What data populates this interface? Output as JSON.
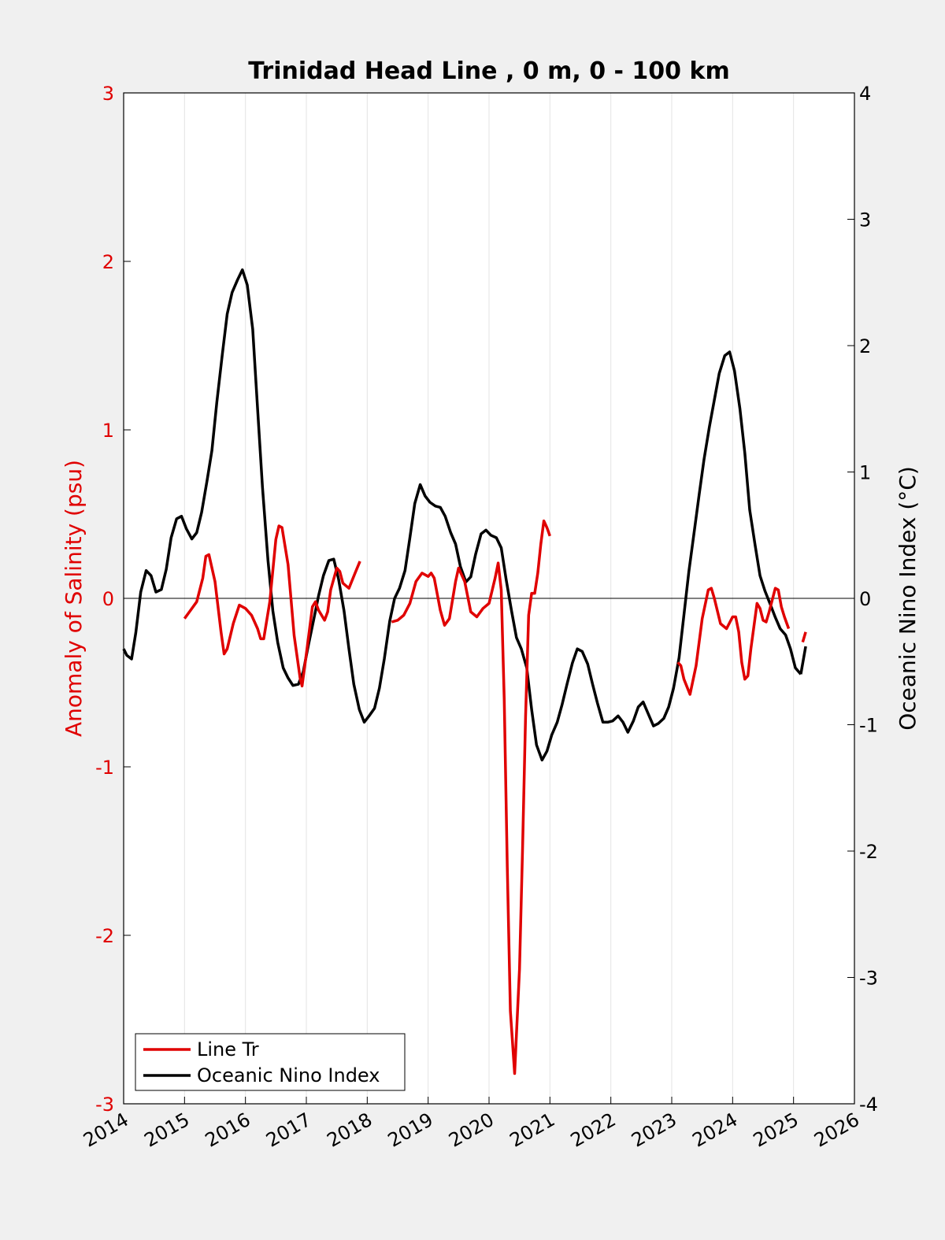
{
  "chart_data": {
    "type": "line",
    "title": "Trinidad Head Line , 0 m, 0 - 100 km",
    "ylabel_left": "Anomaly of Salinity (psu)",
    "ylabel_right": "Oceanic Nino Index (°C)",
    "xlim": [
      2014,
      2026
    ],
    "ylim_left": [
      -3,
      3
    ],
    "ylim_right": [
      -4,
      4
    ],
    "x_ticks": [
      "2014",
      "2015",
      "2016",
      "2017",
      "2018",
      "2019",
      "2020",
      "2021",
      "2022",
      "2023",
      "2024",
      "2025",
      "2026"
    ],
    "y_ticks_left": [
      "3",
      "2",
      "1",
      "0",
      "-1",
      "-2",
      "-3"
    ],
    "y_ticks_right": [
      "4",
      "3",
      "2",
      "1",
      "0",
      "-1",
      "-2",
      "-3",
      "-4"
    ],
    "grid": "vertical",
    "legend_placement": "bottom-left",
    "colors": {
      "salinity": "#e00000",
      "oni": "#000000"
    },
    "series": [
      {
        "name": "Line Tr",
        "axis": "left",
        "color": "#e00000",
        "segments": [
          [
            [
              2015.0,
              -0.12
            ],
            [
              2015.1,
              -0.07
            ],
            [
              2015.2,
              -0.02
            ],
            [
              2015.3,
              0.12
            ],
            [
              2015.35,
              0.25
            ],
            [
              2015.4,
              0.26
            ],
            [
              2015.5,
              0.1
            ],
            [
              2015.6,
              -0.2
            ],
            [
              2015.65,
              -0.33
            ],
            [
              2015.7,
              -0.3
            ],
            [
              2015.8,
              -0.15
            ],
            [
              2015.9,
              -0.04
            ],
            [
              2016.0,
              -0.06
            ],
            [
              2016.1,
              -0.1
            ],
            [
              2016.2,
              -0.18
            ],
            [
              2016.25,
              -0.24
            ],
            [
              2016.3,
              -0.24
            ],
            [
              2016.4,
              -0.02
            ],
            [
              2016.5,
              0.35
            ],
            [
              2016.55,
              0.43
            ],
            [
              2016.6,
              0.42
            ],
            [
              2016.7,
              0.2
            ],
            [
              2016.8,
              -0.22
            ],
            [
              2016.9,
              -0.48
            ],
            [
              2016.93,
              -0.52
            ],
            [
              2017.0,
              -0.33
            ],
            [
              2017.1,
              -0.05
            ],
            [
              2017.15,
              -0.02
            ],
            [
              2017.2,
              -0.07
            ],
            [
              2017.3,
              -0.13
            ],
            [
              2017.35,
              -0.08
            ],
            [
              2017.4,
              0.05
            ],
            [
              2017.5,
              0.18
            ],
            [
              2017.55,
              0.16
            ],
            [
              2017.6,
              0.09
            ],
            [
              2017.7,
              0.06
            ],
            [
              2017.8,
              0.15
            ],
            [
              2017.88,
              0.22
            ]
          ],
          [
            [
              2018.4,
              -0.14
            ],
            [
              2018.5,
              -0.13
            ],
            [
              2018.6,
              -0.1
            ],
            [
              2018.7,
              -0.03
            ],
            [
              2018.8,
              0.1
            ],
            [
              2018.9,
              0.15
            ],
            [
              2019.0,
              0.13
            ],
            [
              2019.05,
              0.15
            ],
            [
              2019.1,
              0.12
            ],
            [
              2019.2,
              -0.07
            ],
            [
              2019.27,
              -0.16
            ],
            [
              2019.35,
              -0.12
            ],
            [
              2019.45,
              0.1
            ],
            [
              2019.5,
              0.18
            ],
            [
              2019.6,
              0.1
            ],
            [
              2019.7,
              -0.08
            ],
            [
              2019.8,
              -0.11
            ],
            [
              2019.9,
              -0.06
            ],
            [
              2020.0,
              -0.03
            ],
            [
              2020.1,
              0.12
            ],
            [
              2020.15,
              0.21
            ],
            [
              2020.2,
              0.05
            ],
            [
              2020.25,
              -0.6
            ],
            [
              2020.3,
              -1.6
            ],
            [
              2020.35,
              -2.45
            ],
            [
              2020.42,
              -2.82
            ],
            [
              2020.5,
              -2.2
            ],
            [
              2020.55,
              -1.5
            ],
            [
              2020.6,
              -0.7
            ],
            [
              2020.65,
              -0.1
            ],
            [
              2020.7,
              0.03
            ],
            [
              2020.75,
              0.03
            ],
            [
              2020.8,
              0.15
            ],
            [
              2020.85,
              0.32
            ],
            [
              2020.9,
              0.46
            ],
            [
              2020.95,
              0.42
            ],
            [
              2021.0,
              0.37
            ]
          ],
          [
            [
              2023.1,
              -0.38
            ],
            [
              2023.15,
              -0.4
            ],
            [
              2023.2,
              -0.48
            ],
            [
              2023.3,
              -0.57
            ],
            [
              2023.4,
              -0.4
            ],
            [
              2023.5,
              -0.12
            ],
            [
              2023.6,
              0.05
            ],
            [
              2023.65,
              0.06
            ],
            [
              2023.7,
              0.0
            ],
            [
              2023.8,
              -0.15
            ],
            [
              2023.9,
              -0.18
            ],
            [
              2024.0,
              -0.11
            ],
            [
              2024.05,
              -0.11
            ],
            [
              2024.1,
              -0.2
            ],
            [
              2024.15,
              -0.38
            ],
            [
              2024.2,
              -0.48
            ],
            [
              2024.25,
              -0.46
            ],
            [
              2024.3,
              -0.3
            ],
            [
              2024.4,
              -0.03
            ],
            [
              2024.45,
              -0.06
            ],
            [
              2024.5,
              -0.13
            ],
            [
              2024.55,
              -0.14
            ],
            [
              2024.6,
              -0.08
            ],
            [
              2024.7,
              0.06
            ],
            [
              2024.75,
              0.05
            ],
            [
              2024.8,
              -0.05
            ],
            [
              2024.85,
              -0.11
            ],
            [
              2024.92,
              -0.18
            ]
          ],
          [
            [
              2025.15,
              -0.26
            ],
            [
              2025.2,
              -0.2
            ]
          ]
        ]
      },
      {
        "name": "Oceanic Nino Index",
        "axis": "right",
        "color": "#000000",
        "segments": [
          [
            [
              2014.0,
              -0.4
            ],
            [
              2014.05,
              -0.45
            ],
            [
              2014.13,
              -0.48
            ],
            [
              2014.2,
              -0.27
            ],
            [
              2014.28,
              0.05
            ],
            [
              2014.37,
              0.22
            ],
            [
              2014.45,
              0.18
            ],
            [
              2014.53,
              0.05
            ],
            [
              2014.62,
              0.07
            ],
            [
              2014.7,
              0.23
            ],
            [
              2014.78,
              0.48
            ],
            [
              2014.87,
              0.63
            ],
            [
              2014.95,
              0.65
            ],
            [
              2015.03,
              0.55
            ],
            [
              2015.12,
              0.47
            ],
            [
              2015.2,
              0.52
            ],
            [
              2015.28,
              0.68
            ],
            [
              2015.37,
              0.93
            ],
            [
              2015.45,
              1.17
            ],
            [
              2015.53,
              1.55
            ],
            [
              2015.62,
              1.93
            ],
            [
              2015.7,
              2.25
            ],
            [
              2015.78,
              2.42
            ],
            [
              2015.87,
              2.52
            ],
            [
              2015.95,
              2.6
            ],
            [
              2016.03,
              2.48
            ],
            [
              2016.12,
              2.13
            ],
            [
              2016.2,
              1.5
            ],
            [
              2016.28,
              0.88
            ],
            [
              2016.37,
              0.3
            ],
            [
              2016.45,
              -0.1
            ],
            [
              2016.53,
              -0.35
            ],
            [
              2016.62,
              -0.55
            ],
            [
              2016.7,
              -0.63
            ],
            [
              2016.78,
              -0.69
            ],
            [
              2016.87,
              -0.68
            ],
            [
              2016.95,
              -0.58
            ],
            [
              2017.03,
              -0.38
            ],
            [
              2017.12,
              -0.17
            ],
            [
              2017.2,
              0.02
            ],
            [
              2017.28,
              0.18
            ],
            [
              2017.37,
              0.3
            ],
            [
              2017.45,
              0.31
            ],
            [
              2017.53,
              0.15
            ],
            [
              2017.62,
              -0.1
            ],
            [
              2017.7,
              -0.4
            ],
            [
              2017.78,
              -0.68
            ],
            [
              2017.87,
              -0.88
            ],
            [
              2017.95,
              -0.98
            ],
            [
              2018.03,
              -0.93
            ],
            [
              2018.12,
              -0.87
            ],
            [
              2018.2,
              -0.71
            ],
            [
              2018.28,
              -0.48
            ],
            [
              2018.37,
              -0.18
            ],
            [
              2018.45,
              0.0
            ],
            [
              2018.53,
              0.08
            ],
            [
              2018.62,
              0.22
            ],
            [
              2018.7,
              0.48
            ],
            [
              2018.78,
              0.75
            ],
            [
              2018.87,
              0.9
            ],
            [
              2018.95,
              0.81
            ],
            [
              2019.03,
              0.76
            ],
            [
              2019.12,
              0.73
            ],
            [
              2019.2,
              0.72
            ],
            [
              2019.28,
              0.65
            ],
            [
              2019.37,
              0.52
            ],
            [
              2019.45,
              0.43
            ],
            [
              2019.53,
              0.25
            ],
            [
              2019.62,
              0.13
            ],
            [
              2019.7,
              0.17
            ],
            [
              2019.78,
              0.35
            ],
            [
              2019.87,
              0.51
            ],
            [
              2019.95,
              0.54
            ],
            [
              2020.03,
              0.5
            ],
            [
              2020.12,
              0.48
            ],
            [
              2020.2,
              0.4
            ],
            [
              2020.28,
              0.15
            ],
            [
              2020.37,
              -0.1
            ],
            [
              2020.45,
              -0.31
            ],
            [
              2020.53,
              -0.4
            ],
            [
              2020.62,
              -0.55
            ],
            [
              2020.7,
              -0.88
            ],
            [
              2020.78,
              -1.16
            ],
            [
              2020.87,
              -1.28
            ],
            [
              2020.95,
              -1.21
            ],
            [
              2021.03,
              -1.08
            ],
            [
              2021.12,
              -0.98
            ],
            [
              2021.2,
              -0.84
            ],
            [
              2021.28,
              -0.68
            ],
            [
              2021.37,
              -0.51
            ],
            [
              2021.45,
              -0.4
            ],
            [
              2021.53,
              -0.42
            ],
            [
              2021.62,
              -0.52
            ],
            [
              2021.7,
              -0.68
            ],
            [
              2021.78,
              -0.83
            ],
            [
              2021.87,
              -0.98
            ],
            [
              2021.95,
              -0.98
            ],
            [
              2022.03,
              -0.97
            ],
            [
              2022.12,
              -0.93
            ],
            [
              2022.2,
              -0.98
            ],
            [
              2022.28,
              -1.06
            ],
            [
              2022.37,
              -0.97
            ],
            [
              2022.45,
              -0.86
            ],
            [
              2022.53,
              -0.82
            ],
            [
              2022.62,
              -0.92
            ],
            [
              2022.7,
              -1.01
            ],
            [
              2022.78,
              -0.99
            ],
            [
              2022.87,
              -0.95
            ],
            [
              2022.95,
              -0.86
            ],
            [
              2023.03,
              -0.71
            ],
            [
              2023.12,
              -0.47
            ],
            [
              2023.2,
              -0.13
            ],
            [
              2023.28,
              0.21
            ],
            [
              2023.37,
              0.53
            ],
            [
              2023.45,
              0.82
            ],
            [
              2023.53,
              1.1
            ],
            [
              2023.62,
              1.36
            ],
            [
              2023.7,
              1.57
            ],
            [
              2023.78,
              1.78
            ],
            [
              2023.87,
              1.92
            ],
            [
              2023.95,
              1.95
            ],
            [
              2024.03,
              1.8
            ],
            [
              2024.12,
              1.5
            ],
            [
              2024.2,
              1.15
            ],
            [
              2024.28,
              0.7
            ],
            [
              2024.37,
              0.42
            ],
            [
              2024.45,
              0.18
            ],
            [
              2024.53,
              0.06
            ],
            [
              2024.62,
              -0.05
            ],
            [
              2024.7,
              -0.15
            ],
            [
              2024.78,
              -0.24
            ],
            [
              2024.87,
              -0.29
            ],
            [
              2024.95,
              -0.4
            ],
            [
              2025.03,
              -0.55
            ],
            [
              2025.12,
              -0.6
            ]
          ],
          [
            [
              2025.12,
              -0.6
            ],
            [
              2025.2,
              -0.38
            ]
          ]
        ]
      }
    ]
  }
}
